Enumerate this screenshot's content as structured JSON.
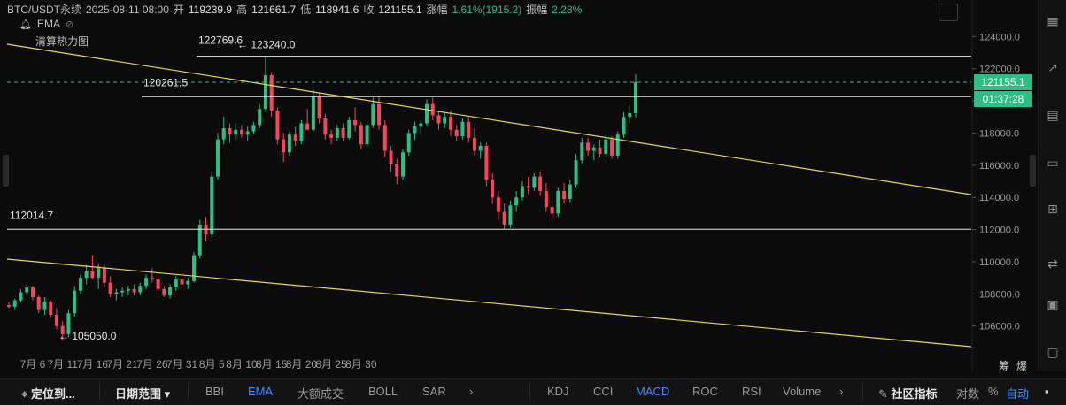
{
  "header": {
    "symbol": "BTC/USDT永续",
    "datetime": "2025-08-11 08:00",
    "open_label": "开",
    "open": "119239.9",
    "high_label": "高",
    "high": "121661.7",
    "low_label": "低",
    "low": "118941.6",
    "close_label": "收",
    "close": "121155.1",
    "change_label": "涨幅",
    "change": "1.61%(1915.2)",
    "amp_label": "振幅",
    "amp": "2.28%",
    "ema_label": "EMA",
    "heatmap_label": "清算热力图"
  },
  "price_tag": {
    "price": "121155.1",
    "countdown": "01:37:28"
  },
  "colors": {
    "up": "#2ebd85",
    "down": "#f6465d",
    "trendline": "#e6d65a",
    "level": "#e6e6e6",
    "bg": "#0b0b0b",
    "accent": "#3d8bff"
  },
  "annotations": {
    "high_peak": "122769.6",
    "high_arrow": "← 123240.0",
    "level_mid": "120261.5",
    "level_low": "112014.7",
    "low_arrow": "← 105050.0"
  },
  "chart_data": {
    "type": "candlestick",
    "y_ticks": [
      "124000.0",
      "122000.0",
      "120000.0",
      "118000.0",
      "116000.0",
      "114000.0",
      "112000.0",
      "110000.0",
      "108000.0",
      "106000.0"
    ],
    "x_ticks": [
      "7月 6",
      "7月 11",
      "7月 16",
      "7月 21",
      "7月 26",
      "7月 31",
      "8月 5",
      "8月 10",
      "8月 15",
      "8月 20",
      "8月 25",
      "8月 30"
    ],
    "ylim": [
      104500,
      125500
    ],
    "horizontal_levels": [
      122769.6,
      120261.5,
      112014.7
    ],
    "candles": [
      [
        107300,
        107500,
        107100,
        107200
      ],
      [
        107200,
        107700,
        107000,
        107600
      ],
      [
        107600,
        108300,
        107500,
        108100
      ],
      [
        108100,
        108600,
        107900,
        108400
      ],
      [
        108400,
        108500,
        107600,
        107800
      ],
      [
        107800,
        107900,
        106800,
        107000
      ],
      [
        107000,
        107800,
        106700,
        107500
      ],
      [
        107500,
        107600,
        106500,
        106700
      ],
      [
        106700,
        107100,
        105800,
        106000
      ],
      [
        106000,
        106300,
        105100,
        105500
      ],
      [
        105500,
        107000,
        105300,
        106800
      ],
      [
        106800,
        108500,
        106600,
        108200
      ],
      [
        108200,
        109200,
        108000,
        109000
      ],
      [
        109000,
        109800,
        108600,
        109400
      ],
      [
        109400,
        110400,
        108900,
        109000
      ],
      [
        109000,
        109900,
        108300,
        109600
      ],
      [
        109600,
        109800,
        108400,
        108700
      ],
      [
        108700,
        109100,
        107800,
        108000
      ],
      [
        108000,
        108300,
        107600,
        108100
      ],
      [
        108100,
        108400,
        107800,
        108200
      ],
      [
        108200,
        108500,
        107900,
        108300
      ],
      [
        108300,
        108600,
        107900,
        108100
      ],
      [
        108100,
        108700,
        107900,
        108500
      ],
      [
        108500,
        109200,
        108300,
        109000
      ],
      [
        109000,
        109600,
        108700,
        108900
      ],
      [
        108900,
        109100,
        108200,
        108300
      ],
      [
        108300,
        108500,
        107800,
        107900
      ],
      [
        107900,
        108600,
        107700,
        108400
      ],
      [
        108400,
        109100,
        108200,
        108900
      ],
      [
        108900,
        109300,
        108500,
        108600
      ],
      [
        108600,
        109000,
        108300,
        108800
      ],
      [
        108800,
        110600,
        108700,
        110400
      ],
      [
        110400,
        112600,
        110200,
        112300
      ],
      [
        112300,
        112800,
        111300,
        111700
      ],
      [
        111700,
        115600,
        111500,
        115300
      ],
      [
        115300,
        118000,
        115100,
        117600
      ],
      [
        117600,
        119000,
        117300,
        118300
      ],
      [
        118300,
        118600,
        117400,
        117900
      ],
      [
        117900,
        118600,
        117600,
        118200
      ],
      [
        118200,
        118500,
        117700,
        117900
      ],
      [
        117900,
        118400,
        117500,
        118100
      ],
      [
        118100,
        118700,
        117900,
        118500
      ],
      [
        118500,
        119800,
        118300,
        119500
      ],
      [
        119500,
        122800,
        119300,
        121600
      ],
      [
        121600,
        121800,
        119000,
        119400
      ],
      [
        119400,
        119600,
        117300,
        117600
      ],
      [
        117600,
        118000,
        116200,
        116800
      ],
      [
        116800,
        118100,
        116600,
        117900
      ],
      [
        117900,
        118400,
        117200,
        117500
      ],
      [
        117500,
        118800,
        117300,
        118600
      ],
      [
        118600,
        119500,
        118200,
        118200
      ],
      [
        118200,
        120700,
        118100,
        120300
      ],
      [
        120300,
        120500,
        118600,
        118900
      ],
      [
        118900,
        119200,
        117600,
        117900
      ],
      [
        117900,
        118200,
        117300,
        117700
      ],
      [
        117700,
        118500,
        117500,
        118300
      ],
      [
        118300,
        118600,
        117500,
        117700
      ],
      [
        117700,
        119000,
        117600,
        118800
      ],
      [
        118800,
        119600,
        118100,
        118500
      ],
      [
        118500,
        118700,
        117000,
        117300
      ],
      [
        117300,
        118700,
        117100,
        118500
      ],
      [
        118500,
        120200,
        118300,
        119800
      ],
      [
        119800,
        120300,
        118200,
        118500
      ],
      [
        118500,
        118800,
        116500,
        116900
      ],
      [
        116900,
        117200,
        115600,
        116100
      ],
      [
        116100,
        116400,
        114800,
        115300
      ],
      [
        115300,
        117000,
        115100,
        116800
      ],
      [
        116800,
        118200,
        116600,
        118000
      ],
      [
        118000,
        118700,
        117600,
        118400
      ],
      [
        118400,
        118800,
        117900,
        118600
      ],
      [
        118600,
        120100,
        118400,
        119800
      ],
      [
        119800,
        120200,
        118800,
        119100
      ],
      [
        119100,
        119400,
        118200,
        118600
      ],
      [
        118600,
        119300,
        118300,
        119000
      ],
      [
        119000,
        119400,
        117800,
        118200
      ],
      [
        118200,
        118500,
        117500,
        117800
      ],
      [
        117800,
        118900,
        117600,
        118700
      ],
      [
        118700,
        119000,
        117400,
        117700
      ],
      [
        117700,
        118300,
        116600,
        116900
      ],
      [
        116900,
        117400,
        116400,
        117200
      ],
      [
        117200,
        117400,
        114700,
        115100
      ],
      [
        115100,
        115500,
        113600,
        114000
      ],
      [
        114000,
        114400,
        112600,
        113100
      ],
      [
        113100,
        113600,
        112000,
        112300
      ],
      [
        112300,
        113800,
        112100,
        113500
      ],
      [
        113500,
        114400,
        113100,
        114000
      ],
      [
        114000,
        115000,
        113800,
        114700
      ],
      [
        114700,
        115300,
        114200,
        114600
      ],
      [
        114600,
        115500,
        114400,
        115300
      ],
      [
        115300,
        115600,
        114100,
        114400
      ],
      [
        114400,
        114900,
        113100,
        113400
      ],
      [
        113400,
        113800,
        112500,
        113000
      ],
      [
        113000,
        114600,
        112800,
        114400
      ],
      [
        114400,
        114900,
        113600,
        113900
      ],
      [
        113900,
        115100,
        113700,
        114800
      ],
      [
        114800,
        116700,
        114600,
        116300
      ],
      [
        116300,
        117700,
        116100,
        117400
      ],
      [
        117400,
        117700,
        116600,
        116900
      ],
      [
        116900,
        117300,
        116300,
        117100
      ],
      [
        117100,
        117600,
        116500,
        116700
      ],
      [
        116700,
        117900,
        116500,
        117600
      ],
      [
        117600,
        117800,
        116400,
        116600
      ],
      [
        116600,
        118100,
        116400,
        117900
      ],
      [
        117900,
        119300,
        117700,
        119000
      ],
      [
        119000,
        119700,
        118600,
        119239
      ],
      [
        119239,
        121662,
        118942,
        121155
      ]
    ]
  },
  "toolbar": {
    "locate": "定位到...",
    "date_range": "日期范围",
    "indicators_left": [
      "BBI",
      "EMA",
      "大额成交",
      "BOLL",
      "SAR"
    ],
    "indicators_right": [
      "KDJ",
      "CCI",
      "MACD",
      "ROC",
      "RSI",
      "Volume"
    ],
    "community": "社区指标",
    "log": "对数",
    "percent": "%",
    "auto": "自动"
  },
  "right_labels": {
    "r1": "筹",
    "r2": "爆"
  }
}
